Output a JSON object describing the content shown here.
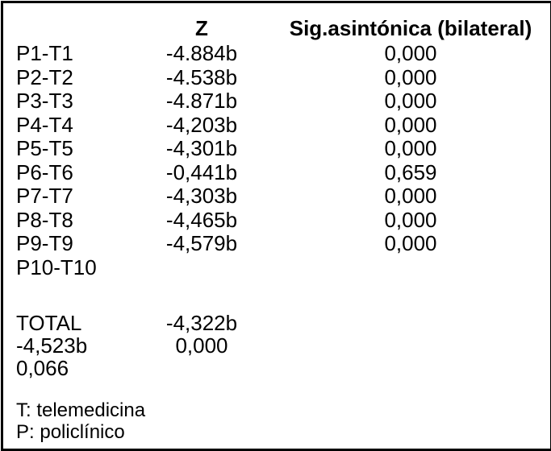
{
  "header": {
    "z": "Z",
    "sig": "Sig.asintónica (bilateral)"
  },
  "rows": [
    {
      "label": "P1-T1",
      "z": "-4.884b",
      "sig": "0,000"
    },
    {
      "label": "P2-T2",
      "z": "-4.538b",
      "sig": "0,000"
    },
    {
      "label": "P3-T3",
      "z": "-4.871b",
      "sig": "0,000"
    },
    {
      "label": "P4-T4",
      "z": "-4,203b",
      "sig": "0,000"
    },
    {
      "label": "P5-T5",
      "z": "-4,301b",
      "sig": "0,000"
    },
    {
      "label": "P6-T6",
      "z": "-0,441b",
      "sig": "0,659"
    },
    {
      "label": "P7-T7",
      "z": "-4,303b",
      "sig": "0,000"
    },
    {
      "label": "P8-T8",
      "z": "-4,465b",
      "sig": "0,000"
    },
    {
      "label": "P9-T9",
      "z": "-4,579b",
      "sig": "0,000"
    },
    {
      "label": "P10-T10",
      "z": "",
      "sig": ""
    }
  ],
  "summary": [
    {
      "label": "TOTAL",
      "z": "-4,322b",
      "sig": ""
    },
    {
      "label": "-4,523b",
      "z": "0,000",
      "sig": ""
    },
    {
      "label": "0,066",
      "z": "",
      "sig": ""
    }
  ],
  "footnotes": [
    "T: telemedicina",
    "P: policlínico"
  ],
  "colors": {
    "text": "#000000",
    "background": "#ffffff",
    "border": "#000000"
  },
  "chart_data": {
    "type": "table",
    "columns": [
      "",
      "Z",
      "Sig.asintónica (bilateral)"
    ],
    "rows": [
      [
        "P1-T1",
        "-4.884b",
        "0,000"
      ],
      [
        "P2-T2",
        "-4.538b",
        "0,000"
      ],
      [
        "P3-T3",
        "-4.871b",
        "0,000"
      ],
      [
        "P4-T4",
        "-4,203b",
        "0,000"
      ],
      [
        "P5-T5",
        "-4,301b",
        "0,000"
      ],
      [
        "P6-T6",
        "-0,441b",
        "0,659"
      ],
      [
        "P7-T7",
        "-4,303b",
        "0,000"
      ],
      [
        "P8-T8",
        "-4,465b",
        "0,000"
      ],
      [
        "P9-T9",
        "-4,579b",
        "0,000"
      ],
      [
        "P10-T10",
        "",
        ""
      ],
      [
        "TOTAL",
        "-4,322b",
        ""
      ],
      [
        "-4,523b",
        "0,000",
        ""
      ],
      [
        "0,066",
        "",
        ""
      ]
    ],
    "footnotes": [
      "T: telemedicina",
      "P: policlínico"
    ]
  }
}
